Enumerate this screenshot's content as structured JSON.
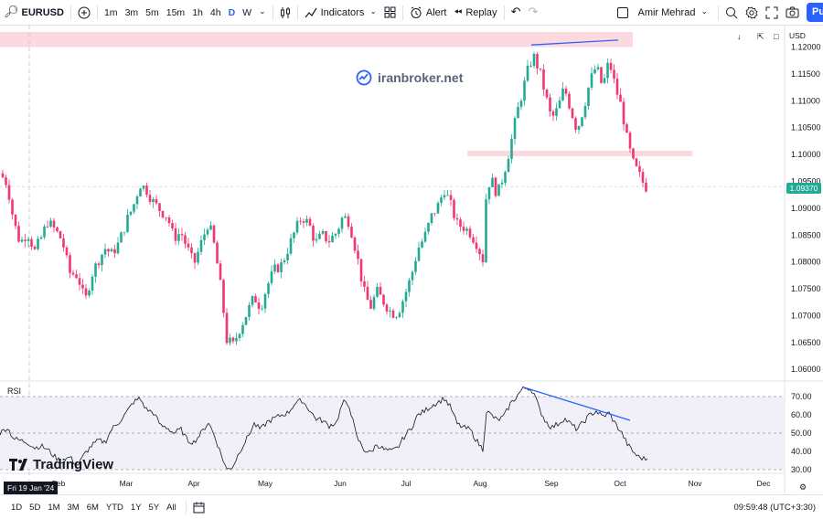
{
  "toolbar": {
    "symbol": "EURUSD",
    "timeframes": [
      "1m",
      "3m",
      "5m",
      "15m",
      "1h",
      "4h",
      "D",
      "W"
    ],
    "active_timeframe": "D",
    "indicators_label": "Indicators",
    "alert_label": "Alert",
    "replay_label": "Replay",
    "user_name": "Amir Mehrad",
    "publish_label": "Pu"
  },
  "chart": {
    "currency": "USD",
    "watermark": "iranbroker.net",
    "current_price": "1.09370",
    "price_axis": [
      "1.12000",
      "1.11500",
      "1.11000",
      "1.10500",
      "1.10000",
      "1.09500",
      "1.09000",
      "1.08500",
      "1.08000",
      "1.07500",
      "1.07000",
      "1.06500",
      "1.06000"
    ],
    "months": [
      "Feb",
      "Mar",
      "Apr",
      "May",
      "Jun",
      "Jul",
      "Aug",
      "Sep",
      "Oct",
      "Nov",
      "Dec"
    ],
    "crosshair_date": "Fri 19 Jan '24",
    "rsi_label": "RSI",
    "rsi_axis": [
      "70.00",
      "60.00",
      "50.00",
      "40.00",
      "30.00"
    ],
    "logo_text": "TradingView"
  },
  "bottombar": {
    "ranges": [
      "1D",
      "5D",
      "1M",
      "3M",
      "6M",
      "YTD",
      "1Y",
      "5Y",
      "All"
    ],
    "clock": "09:59:48 (UTC+3:30)"
  },
  "colors": {
    "up": "#22ab94",
    "down": "#f23670",
    "zone": "#f7b9c4",
    "trendline": "#2962ff",
    "accent": "#2962ff"
  },
  "chart_data": {
    "type": "candlestick",
    "symbol": "EURUSD",
    "current_price": 1.0937,
    "ylim": [
      1.058,
      1.124
    ],
    "rsi_ylim": [
      28,
      77
    ],
    "close_path": [
      [
        0,
        1.0965
      ],
      [
        8,
        1.0945
      ],
      [
        15,
        1.0875
      ],
      [
        22,
        1.0835
      ],
      [
        30,
        1.0855
      ],
      [
        38,
        1.082
      ],
      [
        45,
        1.0845
      ],
      [
        52,
        1.0875
      ],
      [
        60,
        1.086
      ],
      [
        68,
        1.084
      ],
      [
        76,
        1.078
      ],
      [
        85,
        1.0775
      ],
      [
        93,
        1.0725
      ],
      [
        100,
        1.0775
      ],
      [
        108,
        1.0805
      ],
      [
        115,
        1.0825
      ],
      [
        122,
        1.0815
      ],
      [
        130,
        1.0835
      ],
      [
        138,
        1.0875
      ],
      [
        146,
        1.0905
      ],
      [
        153,
        1.0945
      ],
      [
        160,
        1.0935
      ],
      [
        168,
        1.091
      ],
      [
        176,
        1.0895
      ],
      [
        183,
        1.0885
      ],
      [
        190,
        1.0845
      ],
      [
        198,
        1.0855
      ],
      [
        205,
        1.0825
      ],
      [
        212,
        1.0795
      ],
      [
        220,
        1.0835
      ],
      [
        228,
        1.0875
      ],
      [
        235,
        1.0825
      ],
      [
        242,
        1.0745
      ],
      [
        248,
        1.0655
      ],
      [
        255,
        1.0645
      ],
      [
        262,
        1.0675
      ],
      [
        270,
        1.0705
      ],
      [
        278,
        1.0735
      ],
      [
        285,
        1.0715
      ],
      [
        292,
        1.0755
      ],
      [
        300,
        1.0785
      ],
      [
        308,
        1.0795
      ],
      [
        315,
        1.0825
      ],
      [
        322,
        1.0855
      ],
      [
        330,
        1.0885
      ],
      [
        338,
        1.087
      ],
      [
        345,
        1.0835
      ],
      [
        352,
        1.085
      ],
      [
        360,
        1.084
      ],
      [
        368,
        1.0855
      ],
      [
        375,
        1.0885
      ],
      [
        382,
        1.0875
      ],
      [
        390,
        1.0815
      ],
      [
        398,
        1.0745
      ],
      [
        405,
        1.0715
      ],
      [
        412,
        1.0745
      ],
      [
        420,
        1.0725
      ],
      [
        428,
        1.0705
      ],
      [
        435,
        1.0705
      ],
      [
        442,
        1.0735
      ],
      [
        450,
        1.0775
      ],
      [
        457,
        1.0825
      ],
      [
        464,
        1.0845
      ],
      [
        472,
        1.0885
      ],
      [
        479,
        1.0905
      ],
      [
        486,
        1.0935
      ],
      [
        493,
        1.0905
      ],
      [
        500,
        1.087
      ],
      [
        507,
        1.0865
      ],
      [
        514,
        1.0855
      ],
      [
        521,
        1.0835
      ],
      [
        528,
        1.0805
      ],
      [
        532,
        1.0935
      ],
      [
        537,
        1.0955
      ],
      [
        544,
        1.0925
      ],
      [
        551,
        1.0965
      ],
      [
        558,
        1.1015
      ],
      [
        565,
        1.1075
      ],
      [
        571,
        1.1115
      ],
      [
        577,
        1.1155
      ],
      [
        583,
        1.1185
      ],
      [
        590,
        1.1155
      ],
      [
        596,
        1.1115
      ],
      [
        603,
        1.1065
      ],
      [
        610,
        1.1085
      ],
      [
        617,
        1.1125
      ],
      [
        624,
        1.1085
      ],
      [
        631,
        1.1045
      ],
      [
        638,
        1.1085
      ],
      [
        645,
        1.1135
      ],
      [
        652,
        1.1165
      ],
      [
        659,
        1.1125
      ],
      [
        666,
        1.1175
      ],
      [
        673,
        1.1125
      ],
      [
        680,
        1.1085
      ],
      [
        686,
        1.1025
      ],
      [
        692,
        1.0985
      ],
      [
        698,
        1.0965
      ],
      [
        704,
        1.0945
      ],
      [
        708,
        1.0937
      ]
    ],
    "rsi_path": [
      [
        0,
        50
      ],
      [
        8,
        53
      ],
      [
        15,
        47
      ],
      [
        22,
        46
      ],
      [
        30,
        45
      ],
      [
        38,
        42
      ],
      [
        45,
        43
      ],
      [
        52,
        41
      ],
      [
        60,
        37
      ],
      [
        68,
        34
      ],
      [
        76,
        37
      ],
      [
        85,
        32
      ],
      [
        93,
        39
      ],
      [
        100,
        43
      ],
      [
        108,
        46
      ],
      [
        115,
        45
      ],
      [
        122,
        52
      ],
      [
        130,
        56
      ],
      [
        138,
        61
      ],
      [
        146,
        67
      ],
      [
        153,
        69
      ],
      [
        160,
        63
      ],
      [
        168,
        61
      ],
      [
        176,
        54
      ],
      [
        183,
        53
      ],
      [
        190,
        50
      ],
      [
        198,
        52
      ],
      [
        205,
        46
      ],
      [
        212,
        45
      ],
      [
        220,
        50
      ],
      [
        228,
        56
      ],
      [
        235,
        48
      ],
      [
        242,
        38
      ],
      [
        248,
        30
      ],
      [
        255,
        32
      ],
      [
        262,
        40
      ],
      [
        270,
        47
      ],
      [
        278,
        55
      ],
      [
        285,
        52
      ],
      [
        292,
        56
      ],
      [
        300,
        58
      ],
      [
        308,
        60
      ],
      [
        315,
        61
      ],
      [
        322,
        66
      ],
      [
        330,
        68
      ],
      [
        338,
        63
      ],
      [
        345,
        58
      ],
      [
        352,
        57
      ],
      [
        360,
        54
      ],
      [
        368,
        56
      ],
      [
        375,
        67
      ],
      [
        382,
        65
      ],
      [
        390,
        48
      ],
      [
        398,
        41
      ],
      [
        405,
        39
      ],
      [
        412,
        44
      ],
      [
        420,
        41
      ],
      [
        428,
        40
      ],
      [
        435,
        42
      ],
      [
        442,
        48
      ],
      [
        450,
        53
      ],
      [
        457,
        60
      ],
      [
        464,
        62
      ],
      [
        472,
        65
      ],
      [
        479,
        67
      ],
      [
        486,
        69
      ],
      [
        493,
        64
      ],
      [
        500,
        55
      ],
      [
        507,
        53
      ],
      [
        514,
        52
      ],
      [
        521,
        46
      ],
      [
        528,
        41
      ],
      [
        532,
        62
      ],
      [
        537,
        60
      ],
      [
        544,
        57
      ],
      [
        551,
        59
      ],
      [
        558,
        66
      ],
      [
        565,
        70
      ],
      [
        571,
        74
      ],
      [
        577,
        75
      ],
      [
        583,
        73
      ],
      [
        590,
        63
      ],
      [
        596,
        57
      ],
      [
        603,
        53
      ],
      [
        610,
        55
      ],
      [
        617,
        58
      ],
      [
        624,
        55
      ],
      [
        631,
        52
      ],
      [
        638,
        56
      ],
      [
        645,
        60
      ],
      [
        652,
        62
      ],
      [
        659,
        59
      ],
      [
        666,
        61
      ],
      [
        673,
        55
      ],
      [
        680,
        50
      ],
      [
        686,
        44
      ],
      [
        692,
        40
      ],
      [
        698,
        37
      ],
      [
        704,
        36
      ],
      [
        708,
        36
      ]
    ],
    "zones": [
      {
        "x0": 0,
        "x1": 692,
        "y0": 1.12,
        "y1": 1.1228
      },
      {
        "x0": 511,
        "x1": 757,
        "y0": 1.1,
        "y1": 1.1007
      }
    ],
    "trendlines": [
      {
        "pane": "price",
        "x0": 581,
        "y0": 1.1204,
        "x1": 676,
        "y1": 1.1213
      },
      {
        "pane": "rsi",
        "x0": 573,
        "y0": 75,
        "x1": 689,
        "y1": 57
      }
    ]
  }
}
